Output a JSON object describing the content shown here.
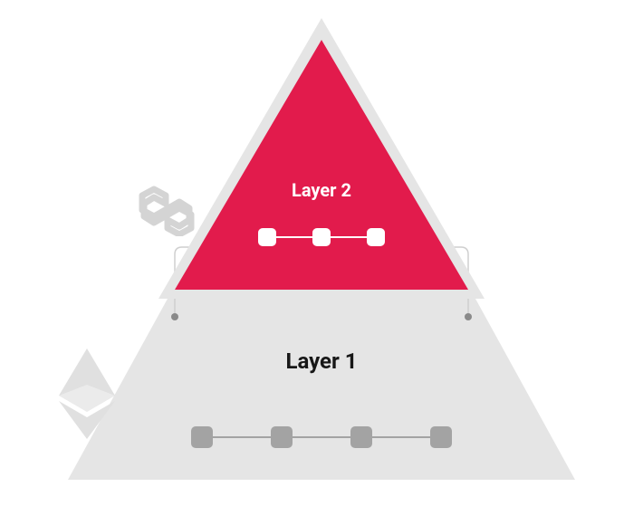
{
  "diagram": {
    "type": "infographic",
    "background_color": "#ffffff",
    "layer2": {
      "label": "Layer 2",
      "label_color": "#ffffff",
      "label_fontsize": 20,
      "triangle_fill": "#e21b4c",
      "triangle_border": "#e5e5e5",
      "triangle_border_width": 10,
      "chain": {
        "block_count": 3,
        "block_color": "#ffffff",
        "block_size": 20,
        "line_color": "#ffffff",
        "line_width": 2
      },
      "icon": {
        "name": "polygon",
        "color": "#d4d4d4"
      }
    },
    "layer1": {
      "label": "Layer 1",
      "label_color": "#171717",
      "label_fontsize": 24,
      "trapezoid_fill": "#e5e5e5",
      "chain": {
        "block_count": 4,
        "block_color": "#a3a3a3",
        "block_size": 24,
        "line_color": "#a3a3a3",
        "line_width": 2
      },
      "icon": {
        "name": "ethereum",
        "color": "#e0e0e0"
      }
    },
    "bracket": {
      "color": "#cfcfcf",
      "dot_color": "#8a8a8a"
    }
  }
}
